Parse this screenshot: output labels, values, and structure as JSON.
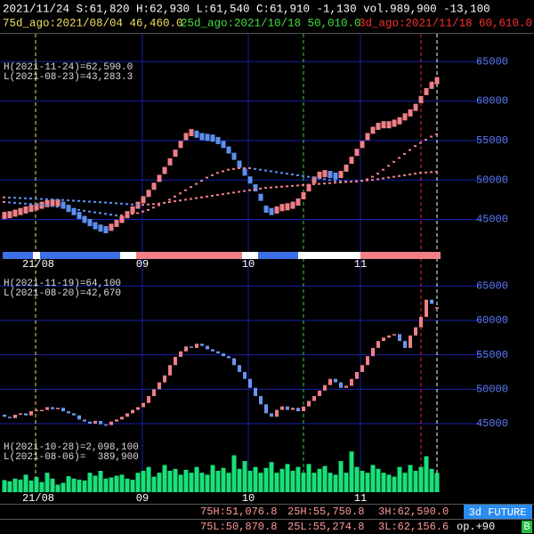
{
  "header": {
    "quote": "2021/11/24 S:61,820 H:62,930 L:61,540 C:61,910 -1,130 vol.989,900 -13,100",
    "ago75": "75d_ago:2021/08/04 46,460.0",
    "ago25": "25d_ago:2021/10/18 50,010.0",
    "ago3": "3d_ago:2021/11/18 60,610.0"
  },
  "chart_data": [
    {
      "type": "line",
      "annotations": [
        "H(2021-11-24)=62,590.0",
        "L(2021-08-23)=43,283.3"
      ],
      "ylim": [
        41000,
        68300
      ],
      "yticks": [
        45000,
        50000,
        55000,
        60000,
        65000
      ],
      "grid": true,
      "x_labels": [
        "21/08",
        "09",
        "10",
        "11"
      ],
      "series": [
        {
          "marker": "square",
          "color_up": "#f07f86",
          "color_down": "#5d8ff0",
          "values": [
            45500,
            45600,
            45800,
            46000,
            46200,
            46400,
            46600,
            46800,
            47000,
            47100,
            47100,
            46800,
            46400,
            46000,
            45500,
            45000,
            44600,
            44200,
            43900,
            43700,
            44000,
            44500,
            45000,
            45600,
            46200,
            46800,
            47500,
            48300,
            49200,
            50200,
            51200,
            52300,
            53400,
            54500,
            55500,
            56000,
            55800,
            55500,
            55400,
            55300,
            55000,
            54500,
            53800,
            53000,
            52000,
            51000,
            50000,
            49000,
            47800,
            46300,
            46000,
            46200,
            46500,
            46600,
            46800,
            47200,
            48000,
            49000,
            50000,
            50600,
            50800,
            50700,
            50500,
            50700,
            51500,
            52500,
            53500,
            54500,
            55500,
            56300,
            56800,
            57000,
            57000,
            57200,
            57500,
            58000,
            58500,
            59200,
            60200,
            61200,
            62000,
            62590
          ]
        },
        {
          "marker": "dot",
          "color_up": "#f07f86",
          "color_down": "#5d8ff0",
          "values": [
            47200,
            47150,
            47100,
            47050,
            47000,
            46950,
            46900,
            46850,
            46800,
            46700,
            46600,
            46500,
            46400,
            46300,
            46200,
            46100,
            46000,
            45900,
            45800,
            45700,
            45600,
            45500,
            45500,
            45600,
            45700,
            45800,
            46000,
            46200,
            46500,
            46800,
            47100,
            47500,
            47900,
            48300,
            48700,
            49100,
            49500,
            49900,
            50300,
            50600,
            50900,
            51100,
            51300,
            51400,
            51500,
            51500,
            51500,
            51400,
            51300,
            51200,
            51100,
            51000,
            50900,
            50800,
            50700,
            50600,
            50500,
            50400,
            50300,
            50200,
            50100,
            50000,
            49900,
            49850,
            49800,
            49800,
            49800,
            49900,
            50100,
            50400,
            50800,
            51300,
            51800,
            52300,
            52800,
            53300,
            53800,
            54300,
            54700,
            55100,
            55500,
            55800
          ]
        },
        {
          "marker": "dot",
          "color_up": "#f07f86",
          "color_down": "#5d8ff0",
          "values": [
            47800,
            47770,
            47740,
            47710,
            47680,
            47650,
            47620,
            47590,
            47560,
            47530,
            47500,
            47460,
            47420,
            47380,
            47340,
            47300,
            47260,
            47220,
            47180,
            47140,
            47100,
            47050,
            47000,
            46950,
            46900,
            46850,
            46850,
            46900,
            46950,
            47000,
            47100,
            47200,
            47300,
            47400,
            47500,
            47600,
            47700,
            47800,
            47900,
            48000,
            48100,
            48200,
            48300,
            48400,
            48500,
            48600,
            48700,
            48800,
            48900,
            49000,
            49050,
            49100,
            49150,
            49200,
            49250,
            49300,
            49350,
            49400,
            49450,
            49500,
            49550,
            49600,
            49650,
            49700,
            49750,
            49800,
            49850,
            49900,
            49950,
            50000,
            50100,
            50200,
            50300,
            50400,
            50500,
            50600,
            50700,
            50800,
            50900,
            50950,
            51000,
            51050
          ]
        }
      ]
    },
    {
      "type": "candlestick",
      "annotations": [
        "H(2021-11-19)=64,100",
        "L(2021-08-20)=42,670"
      ],
      "ylim": [
        41900,
        67100
      ],
      "yticks": [
        45000,
        50000,
        55000,
        60000,
        65000
      ],
      "grid": true,
      "color_up": "#f07f86",
      "color_down": "#6b95f0",
      "open": [
        46300,
        46000,
        45800,
        46300,
        46500,
        46200,
        46800,
        47000,
        47000,
        47400,
        47100,
        47300,
        46800,
        46500,
        46200,
        45600,
        45300,
        45000,
        45400,
        44900,
        44800,
        45300,
        45600,
        46000,
        46500,
        47000,
        47400,
        48000,
        49000,
        50000,
        51000,
        52000,
        53500,
        54700,
        55500,
        56200,
        56000,
        56600,
        56300,
        55800,
        55500,
        55200,
        54800,
        54500,
        53500,
        52500,
        51500,
        50200,
        49000,
        47800,
        46500,
        46000,
        47000,
        47500,
        47000,
        47300,
        46800,
        47500,
        48300,
        49000,
        49800,
        50600,
        51500,
        51000,
        50200,
        50500,
        51500,
        52500,
        53500,
        54800,
        56000,
        57000,
        57500,
        57800,
        58000,
        57000,
        56000,
        57800,
        59000,
        60500,
        63000,
        61820
      ],
      "close": [
        46000,
        45800,
        46300,
        46500,
        46200,
        46800,
        47000,
        47000,
        47400,
        47100,
        47300,
        46800,
        46500,
        46200,
        45600,
        45300,
        45000,
        45400,
        44900,
        44800,
        45300,
        45600,
        46000,
        46500,
        47000,
        47400,
        48000,
        49000,
        50000,
        51000,
        52000,
        53500,
        54700,
        55500,
        56200,
        56000,
        56600,
        56300,
        55800,
        55500,
        55200,
        54800,
        54500,
        53500,
        52500,
        51500,
        50200,
        49000,
        47800,
        46500,
        46000,
        47000,
        47500,
        47000,
        47300,
        46800,
        47500,
        48300,
        49000,
        49800,
        50600,
        51500,
        51000,
        50200,
        50500,
        51500,
        52500,
        53500,
        54800,
        56000,
        57000,
        57500,
        57800,
        58000,
        57000,
        56000,
        57800,
        59000,
        60500,
        63000,
        62400,
        61910
      ]
    },
    {
      "type": "bar",
      "annotations": [
        "H(2021-10-28)=2,098,100",
        "L(2021-08-06)=  389,900"
      ],
      "ylim": [
        0,
        2200000
      ],
      "color": "#19e07a",
      "x_labels": [
        "21/08",
        "09",
        "10",
        "11"
      ],
      "values": [
        620000,
        560000,
        700000,
        650000,
        900000,
        600000,
        780000,
        520000,
        1000000,
        700000,
        389900,
        480000,
        820000,
        700000,
        650000,
        600000,
        1000000,
        850000,
        1100000,
        700000,
        760000,
        850000,
        900000,
        700000,
        640000,
        1000000,
        1100000,
        1300000,
        800000,
        1000000,
        1400000,
        1100000,
        1200000,
        900000,
        1150000,
        1000000,
        1300000,
        1000000,
        900000,
        1400000,
        1100000,
        1250000,
        1000000,
        1900000,
        1200000,
        1600000,
        1100000,
        1300000,
        1000000,
        1250000,
        1550000,
        1000000,
        1200000,
        1450000,
        1100000,
        1300000,
        1000000,
        1450000,
        1000000,
        1200000,
        1350000,
        1000000,
        900000,
        1600000,
        1000000,
        2098100,
        1300000,
        1100000,
        1000000,
        1400000,
        1200000,
        1000000,
        900000,
        800000,
        1300000,
        1000000,
        1400000,
        1100000,
        1300000,
        1850000,
        1200000,
        989900
      ]
    }
  ],
  "footer": {
    "h75": "75H:51,076.8",
    "h25": "25H:55,750.8",
    "h3": "3H:62,590.0",
    "mode": "3d FUTURE",
    "l75": "75L:50,870.8",
    "l25": "25L:55,274.8",
    "l3": "3L:62,156.6",
    "op": "op.+90",
    "flag": "B"
  }
}
